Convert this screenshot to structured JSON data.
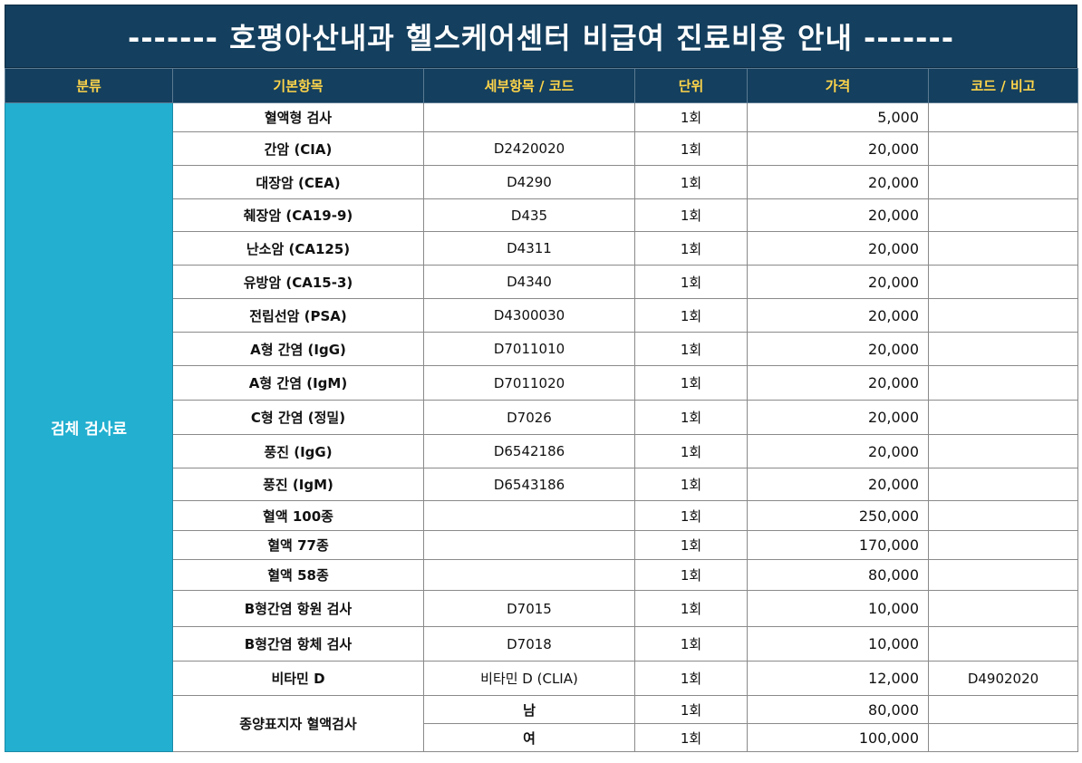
{
  "title": "------- 호평아산내과 헬스케어센터 비급여 진료비용 안내 -------",
  "headers": [
    "분류",
    "기본항목",
    "세부항목 / 코드",
    "단위",
    "가격",
    "코드 / 비고"
  ],
  "category": "검체 검사료",
  "rows": [
    {
      "name": "혈액형 검사",
      "detail": "",
      "unit": "1회",
      "price": "5,000",
      "note": ""
    },
    {
      "name": "간암 (CIA)",
      "detail": "D2420020",
      "unit": "1회",
      "price": "20,000",
      "note": ""
    },
    {
      "name": "대장암 (CEA)",
      "detail": "D4290",
      "unit": "1회",
      "price": "20,000",
      "note": ""
    },
    {
      "name": "췌장암 (CA19-9)",
      "detail": "D435",
      "unit": "1회",
      "price": "20,000",
      "note": ""
    },
    {
      "name": "난소암 (CA125)",
      "detail": "D4311",
      "unit": "1회",
      "price": "20,000",
      "note": ""
    },
    {
      "name": "유방암 (CA15-3)",
      "detail": "D4340",
      "unit": "1회",
      "price": "20,000",
      "note": ""
    },
    {
      "name": "전립선암 (PSA)",
      "detail": "D4300030",
      "unit": "1회",
      "price": "20,000",
      "note": ""
    },
    {
      "name": "A형 간염 (IgG)",
      "detail": "D7011010",
      "unit": "1회",
      "price": "20,000",
      "note": ""
    },
    {
      "name": "A형 간염 (IgM)",
      "detail": "D7011020",
      "unit": "1회",
      "price": "20,000",
      "note": ""
    },
    {
      "name": "C형 간염 (정밀)",
      "detail": "D7026",
      "unit": "1회",
      "price": "20,000",
      "note": ""
    },
    {
      "name": "풍진 (IgG)",
      "detail": "D6542186",
      "unit": "1회",
      "price": "20,000",
      "note": ""
    },
    {
      "name": "풍진 (IgM)",
      "detail": "D6543186",
      "unit": "1회",
      "price": "20,000",
      "note": ""
    },
    {
      "name": "혈액 100종",
      "detail": "",
      "unit": "1회",
      "price": "250,000",
      "note": ""
    },
    {
      "name": "혈액 77종",
      "detail": "",
      "unit": "1회",
      "price": "170,000",
      "note": ""
    },
    {
      "name": "혈액 58종",
      "detail": "",
      "unit": "1회",
      "price": "80,000",
      "note": ""
    },
    {
      "name": "B형간염 항원 검사",
      "detail": "D7015",
      "unit": "1회",
      "price": "10,000",
      "note": ""
    },
    {
      "name": "B형간염 항체 검사",
      "detail": "D7018",
      "unit": "1회",
      "price": "10,000",
      "note": ""
    },
    {
      "name": "비타민 D",
      "detail": "비타민 D (CLIA)",
      "unit": "1회",
      "price": "12,000",
      "note": "D4902020"
    }
  ],
  "tumor": {
    "name": "종양표지자 혈액검사",
    "sub": [
      {
        "detail": "남",
        "unit": "1회",
        "price": "80,000",
        "note": ""
      },
      {
        "detail": "여",
        "unit": "1회",
        "price": "100,000",
        "note": ""
      }
    ]
  }
}
